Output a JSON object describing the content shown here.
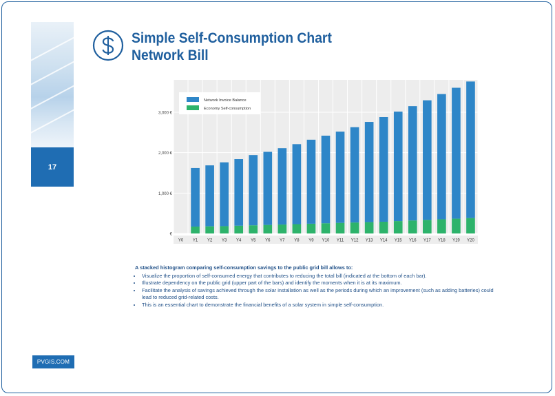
{
  "page_number": "17",
  "site": "PVGIS.COM",
  "title_line1": "Simple Self-Consumption Chart",
  "title_line2": "Network Bill",
  "icon": "dollar-icon",
  "colors": {
    "accent": "#1f6db3",
    "title": "#1f5f9e",
    "series_bill": "#2e86c8",
    "series_saving": "#2db36b"
  },
  "chart_data": {
    "type": "bar",
    "stacked": true,
    "categories": [
      "Y0",
      "Y1",
      "Y2",
      "Y3",
      "Y4",
      "Y5",
      "Y6",
      "Y7",
      "Y8",
      "Y9",
      "Y10",
      "Y11",
      "Y12",
      "Y13",
      "Y14",
      "Y15",
      "Y16",
      "Y17",
      "Y18",
      "Y19",
      "Y20"
    ],
    "series": [
      {
        "name": "Economy Self-consumption",
        "values": [
          0,
          170,
          175,
          180,
          190,
          200,
          210,
          220,
          230,
          240,
          250,
          260,
          270,
          280,
          290,
          305,
          320,
          335,
          350,
          365,
          380
        ]
      },
      {
        "name": "Network Invoice Balance",
        "values": [
          0,
          1450,
          1510,
          1580,
          1650,
          1740,
          1810,
          1890,
          1980,
          2080,
          2170,
          2260,
          2360,
          2480,
          2590,
          2710,
          2830,
          2960,
          3100,
          3240,
          3380
        ]
      }
    ],
    "y_ticks": [
      "€",
      "1,000 €",
      "2,000 €",
      "3,000 €"
    ],
    "y_tick_values": [
      0,
      1000,
      2000,
      3000
    ],
    "ylim": [
      0,
      3800
    ],
    "legend": "top-left",
    "grid": true
  },
  "description": {
    "heading": "A stacked histogram comparing self-consumption savings to the public grid bill allows to:",
    "bullets": [
      "Visualize the proportion of self-consumed energy that contributes to reducing the total bill (indicated at the bottom of each bar).",
      "Illustrate dependency on the public grid (upper part of the bars) and identify the moments when it is at its maximum.",
      "Facilitate the analysis of savings achieved through the solar installation as well as the periods during which an improvement (such as adding batteries) could lead to reduced grid-related costs.",
      "This is an essential chart to demonstrate the financial benefits of a solar system in simple self-consumption."
    ]
  }
}
